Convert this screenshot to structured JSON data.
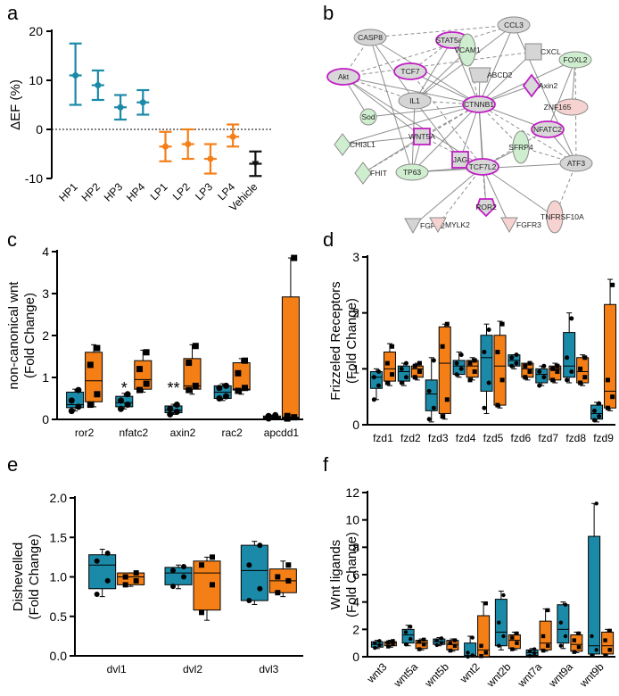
{
  "colors": {
    "hp": "#1a8aa8",
    "lp": "#f57f17",
    "vehicle": "#111111",
    "axis": "#000000",
    "net_gray": "#d5d5d5",
    "net_green": "#cfeecf",
    "net_pink": "#f6d3d0",
    "net_magenta": "#c01ec4",
    "net_line": "#7c7c7c"
  },
  "network": {
    "panel": "b",
    "nodes": [
      "CASP8",
      "STAT5a/b",
      "VCAM1",
      "CCL3",
      "CXCL",
      "FOXL2",
      "Akt",
      "TCF7",
      "ABCD2",
      "Axin2",
      "IL1",
      "CTNNB1",
      "ZNF165",
      "Sod",
      "WNT5A",
      "NFATC2",
      "CHI3L1",
      "JAG",
      "SFRP4",
      "ATF3",
      "FHIT",
      "TP63",
      "TCF7L2",
      "ROR2",
      "TNFRSF10A",
      "FGFR2",
      "MYLK2",
      "FGFR3"
    ]
  },
  "chart_data": [
    {
      "panel": "a",
      "type": "scatter",
      "categories": [
        "HP1",
        "HP2",
        "HP3",
        "HP4",
        "LP1",
        "LP2",
        "LP3",
        "LP4",
        "Vehicle"
      ],
      "groups": [
        "hp",
        "hp",
        "hp",
        "hp",
        "lp",
        "lp",
        "lp",
        "lp",
        "vehicle"
      ],
      "mean": [
        11,
        9,
        4.5,
        5.5,
        -3.5,
        -3,
        -6,
        -1.5,
        -7
      ],
      "err_low": [
        5,
        6,
        2,
        3,
        -6.5,
        -6,
        -9,
        -3.5,
        -9.5
      ],
      "err_high": [
        17.5,
        12,
        7,
        8,
        -0.5,
        0,
        -3,
        1,
        -4.5
      ],
      "ylabel": "ΔEF (%)",
      "ylim": [
        -10,
        20
      ],
      "yticks": [
        "-10",
        "0",
        "10",
        "20"
      ],
      "reference_line": 0
    },
    {
      "panel": "c",
      "type": "box",
      "ylabel": [
        "non-canonical wnt",
        "(Fold Change)"
      ],
      "ylim": [
        0,
        4
      ],
      "yticks": [
        "0",
        "1",
        "2",
        "3",
        "4"
      ],
      "categories": [
        "ror2",
        "nfatc2",
        "axin2",
        "rac2",
        "apcdd1"
      ],
      "significance": [
        "",
        "*",
        "**",
        "",
        ""
      ],
      "series": [
        {
          "name": "HP",
          "boxes": [
            {
              "min": 0.2,
              "q1": 0.28,
              "median": 0.35,
              "q3": 0.65,
              "max": 0.72,
              "points": [
                0.2,
                0.3,
                0.45,
                0.7
              ]
            },
            {
              "min": 0.25,
              "q1": 0.3,
              "median": 0.4,
              "q3": 0.55,
              "max": 0.62,
              "points": [
                0.25,
                0.35,
                0.45,
                0.6
              ]
            },
            {
              "min": 0.12,
              "q1": 0.16,
              "median": 0.22,
              "q3": 0.32,
              "max": 0.36,
              "points": [
                0.12,
                0.18,
                0.25,
                0.35
              ]
            },
            {
              "min": 0.45,
              "q1": 0.5,
              "median": 0.65,
              "q3": 0.8,
              "max": 0.85,
              "points": [
                0.5,
                0.55,
                0.75,
                0.8
              ]
            },
            {
              "min": 0.02,
              "q1": 0.03,
              "median": 0.05,
              "q3": 0.08,
              "max": 0.1,
              "points": [
                0.02,
                0.05,
                0.08,
                0.1
              ]
            }
          ]
        },
        {
          "name": "LP",
          "boxes": [
            {
              "min": 0.3,
              "q1": 0.42,
              "median": 0.92,
              "q3": 1.6,
              "max": 1.78,
              "points": [
                0.35,
                0.6,
                1.3,
                1.7
              ]
            },
            {
              "min": 0.65,
              "q1": 0.72,
              "median": 0.95,
              "q3": 1.4,
              "max": 1.65,
              "points": [
                0.7,
                0.85,
                1.2,
                1.6
              ]
            },
            {
              "min": 0.6,
              "q1": 0.72,
              "median": 0.8,
              "q3": 1.45,
              "max": 1.78,
              "points": [
                0.7,
                0.8,
                1.35,
                1.75
              ]
            },
            {
              "min": 0.6,
              "q1": 0.7,
              "median": 0.72,
              "q3": 1.35,
              "max": 1.45,
              "points": [
                0.68,
                0.75,
                1.1,
                1.4
              ]
            },
            {
              "min": 0.02,
              "q1": 0.03,
              "median": 0.05,
              "q3": 2.92,
              "max": 3.85,
              "points": [
                0.02,
                0.05,
                0.08,
                3.85
              ]
            }
          ]
        }
      ]
    },
    {
      "panel": "d",
      "type": "box",
      "ylabel": [
        "Frizzeled Receptors",
        "(Fold Change)"
      ],
      "ylim": [
        0,
        3
      ],
      "yticks": [
        "0",
        "1",
        "2",
        "3"
      ],
      "categories": [
        "fzd1",
        "fzd2",
        "fzd3",
        "fzd4",
        "fzd5",
        "fzd6",
        "fzd7",
        "fzd8",
        "fzd9"
      ],
      "series": [
        {
          "name": "HP",
          "boxes": [
            {
              "min": 0.45,
              "q1": 0.65,
              "median": 0.85,
              "q3": 0.95,
              "max": 1.0,
              "points": [
                0.45,
                0.7,
                0.85,
                0.95
              ]
            },
            {
              "min": 0.7,
              "q1": 0.78,
              "median": 0.95,
              "q3": 1.05,
              "max": 1.1,
              "points": [
                0.75,
                0.85,
                1.0,
                1.1
              ]
            },
            {
              "min": 0.05,
              "q1": 0.25,
              "median": 0.55,
              "q3": 0.8,
              "max": 1.2,
              "points": [
                0.1,
                0.3,
                0.6,
                1.15
              ]
            },
            {
              "min": 0.85,
              "q1": 0.9,
              "median": 1.05,
              "q3": 1.15,
              "max": 1.3,
              "points": [
                0.9,
                1.0,
                1.1,
                1.25
              ]
            },
            {
              "min": 0.2,
              "q1": 0.6,
              "median": 1.2,
              "q3": 1.6,
              "max": 1.8,
              "points": [
                0.3,
                0.75,
                1.3,
                1.7
              ]
            },
            {
              "min": 1.0,
              "q1": 1.05,
              "median": 1.15,
              "q3": 1.25,
              "max": 1.25,
              "points": [
                1.05,
                1.1,
                1.2,
                1.25
              ]
            },
            {
              "min": 0.7,
              "q1": 0.75,
              "median": 0.9,
              "q3": 1.0,
              "max": 1.05,
              "points": [
                0.7,
                0.85,
                0.95,
                1.05
              ]
            },
            {
              "min": 0.75,
              "q1": 0.85,
              "median": 1.05,
              "q3": 1.65,
              "max": 2.0,
              "points": [
                0.8,
                0.95,
                1.2,
                1.9
              ]
            },
            {
              "min": 0.05,
              "q1": 0.1,
              "median": 0.2,
              "q3": 0.35,
              "max": 0.4,
              "points": [
                0.08,
                0.15,
                0.25,
                0.38
              ]
            }
          ]
        },
        {
          "name": "LP",
          "boxes": [
            {
              "min": 0.7,
              "q1": 0.78,
              "median": 1.0,
              "q3": 1.3,
              "max": 1.45,
              "points": [
                0.75,
                0.9,
                1.1,
                1.4
              ]
            },
            {
              "min": 0.8,
              "q1": 0.85,
              "median": 1.0,
              "q3": 1.05,
              "max": 1.1,
              "points": [
                0.85,
                0.95,
                1.05,
                1.1
              ]
            },
            {
              "min": 0.1,
              "q1": 0.2,
              "median": 1.1,
              "q3": 1.75,
              "max": 1.8,
              "points": [
                0.15,
                0.45,
                1.4,
                1.8
              ]
            },
            {
              "min": 0.8,
              "q1": 0.85,
              "median": 1.05,
              "q3": 1.15,
              "max": 1.2,
              "points": [
                0.8,
                0.95,
                1.1,
                1.15
              ]
            },
            {
              "min": 0.3,
              "q1": 0.35,
              "median": 1.05,
              "q3": 1.6,
              "max": 1.85,
              "points": [
                0.35,
                0.8,
                1.3,
                1.8
              ]
            },
            {
              "min": 0.8,
              "q1": 0.85,
              "median": 1.0,
              "q3": 1.1,
              "max": 1.1,
              "points": [
                0.85,
                0.95,
                1.05,
                1.1
              ]
            },
            {
              "min": 0.75,
              "q1": 0.8,
              "median": 1.0,
              "q3": 1.05,
              "max": 1.1,
              "points": [
                0.8,
                0.95,
                1.0,
                1.05
              ]
            },
            {
              "min": 0.7,
              "q1": 0.75,
              "median": 0.95,
              "q3": 1.2,
              "max": 1.25,
              "points": [
                0.75,
                0.85,
                1.0,
                1.2
              ]
            },
            {
              "min": 0.25,
              "q1": 0.3,
              "median": 0.6,
              "q3": 2.15,
              "max": 2.6,
              "points": [
                0.3,
                0.5,
                0.8,
                2.5
              ]
            }
          ]
        }
      ]
    },
    {
      "panel": "e",
      "type": "box",
      "ylabel": [
        "Dishevelled",
        "(Fold Change)"
      ],
      "ylim": [
        0,
        2.0
      ],
      "yticks": [
        "0.0",
        "0.5",
        "1.0",
        "1.5",
        "2.0"
      ],
      "categories": [
        "dvl1",
        "dvl2",
        "dvl3"
      ],
      "series": [
        {
          "name": "HP",
          "boxes": [
            {
              "min": 0.75,
              "q1": 0.85,
              "median": 1.15,
              "q3": 1.28,
              "max": 1.35,
              "points": [
                0.78,
                0.95,
                1.2,
                1.3
              ]
            },
            {
              "min": 0.85,
              "q1": 0.9,
              "median": 1.05,
              "q3": 1.12,
              "max": 1.15,
              "points": [
                0.88,
                1.0,
                1.08,
                1.13
              ]
            },
            {
              "min": 0.65,
              "q1": 0.7,
              "median": 1.08,
              "q3": 1.4,
              "max": 1.45,
              "points": [
                0.7,
                0.85,
                1.15,
                1.4
              ]
            }
          ]
        },
        {
          "name": "LP",
          "boxes": [
            {
              "min": 0.88,
              "q1": 0.9,
              "median": 1.0,
              "q3": 1.05,
              "max": 1.05,
              "points": [
                0.9,
                0.95,
                1.0,
                1.05
              ]
            },
            {
              "min": 0.45,
              "q1": 0.58,
              "median": 1.05,
              "q3": 1.2,
              "max": 1.25,
              "points": [
                0.55,
                0.9,
                1.15,
                1.25
              ]
            },
            {
              "min": 0.75,
              "q1": 0.8,
              "median": 0.95,
              "q3": 1.1,
              "max": 1.2,
              "points": [
                0.8,
                0.95,
                1.0,
                1.15
              ]
            }
          ]
        }
      ]
    },
    {
      "panel": "f",
      "type": "box",
      "ylabel": [
        "Wnt ligands",
        "(Fold Change)"
      ],
      "ylim": [
        0,
        12
      ],
      "yticks": [
        "0",
        "2",
        "4",
        "6",
        "8",
        "10",
        "12"
      ],
      "categories": [
        "wnt3",
        "wnt5a",
        "wnt5b",
        "wnt2",
        "wnt2b",
        "wnt7a",
        "wnt9a",
        "wnt9b"
      ],
      "series": [
        {
          "name": "HP",
          "boxes": [
            {
              "min": 0.6,
              "q1": 0.7,
              "median": 0.9,
              "q3": 1.1,
              "max": 1.2,
              "points": [
                0.65,
                0.85,
                1.0,
                1.15
              ]
            },
            {
              "min": 0.8,
              "q1": 1.0,
              "median": 1.6,
              "q3": 2.0,
              "max": 2.3,
              "points": [
                0.9,
                1.3,
                1.8,
                2.2
              ]
            },
            {
              "min": 0.8,
              "q1": 0.9,
              "median": 1.1,
              "q3": 1.3,
              "max": 1.4,
              "points": [
                0.85,
                1.0,
                1.2,
                1.35
              ]
            },
            {
              "min": 0.0,
              "q1": 0.0,
              "median": 0.1,
              "q3": 1.0,
              "max": 1.5,
              "points": [
                0.0,
                0.1,
                0.3,
                1.4
              ]
            },
            {
              "min": 0.5,
              "q1": 0.8,
              "median": 1.8,
              "q3": 4.2,
              "max": 4.8,
              "points": [
                0.8,
                1.5,
                2.5,
                4.5
              ]
            },
            {
              "min": 0.0,
              "q1": 0.1,
              "median": 0.3,
              "q3": 0.5,
              "max": 0.6,
              "points": [
                0.05,
                0.25,
                0.4,
                0.55
              ]
            },
            {
              "min": 0.6,
              "q1": 1.0,
              "median": 2.0,
              "q3": 3.8,
              "max": 4.0,
              "points": [
                0.8,
                1.5,
                2.5,
                3.8
              ]
            },
            {
              "min": 0.0,
              "q1": 0.2,
              "median": 0.8,
              "q3": 8.8,
              "max": 11.2,
              "points": [
                0.1,
                0.5,
                1.5,
                11.2
              ]
            }
          ]
        },
        {
          "name": "LP",
          "boxes": [
            {
              "min": 0.7,
              "q1": 0.8,
              "median": 1.0,
              "q3": 1.1,
              "max": 1.2,
              "points": [
                0.75,
                0.95,
                1.05,
                1.15
              ]
            },
            {
              "min": 0.5,
              "q1": 0.6,
              "median": 1.0,
              "q3": 1.2,
              "max": 1.3,
              "points": [
                0.55,
                0.9,
                1.1,
                1.25
              ]
            },
            {
              "min": 0.4,
              "q1": 0.5,
              "median": 0.9,
              "q3": 1.2,
              "max": 1.3,
              "points": [
                0.45,
                0.8,
                1.0,
                1.2
              ]
            },
            {
              "min": 0.0,
              "q1": 0.0,
              "median": 0.5,
              "q3": 3.0,
              "max": 4.0,
              "points": [
                0.05,
                0.3,
                0.8,
                3.9
              ]
            },
            {
              "min": 0.5,
              "q1": 0.6,
              "median": 1.2,
              "q3": 1.6,
              "max": 1.8,
              "points": [
                0.55,
                1.0,
                1.4,
                1.7
              ]
            },
            {
              "min": 0.4,
              "q1": 0.5,
              "median": 1.0,
              "q3": 2.6,
              "max": 3.5,
              "points": [
                0.45,
                0.8,
                1.5,
                3.4
              ]
            },
            {
              "min": 0.3,
              "q1": 0.4,
              "median": 0.9,
              "q3": 1.6,
              "max": 1.8,
              "points": [
                0.35,
                0.7,
                1.2,
                1.7
              ]
            },
            {
              "min": 0.0,
              "q1": 0.2,
              "median": 0.8,
              "q3": 1.8,
              "max": 2.0,
              "points": [
                0.1,
                0.5,
                1.2,
                1.9
              ]
            }
          ]
        }
      ]
    }
  ]
}
